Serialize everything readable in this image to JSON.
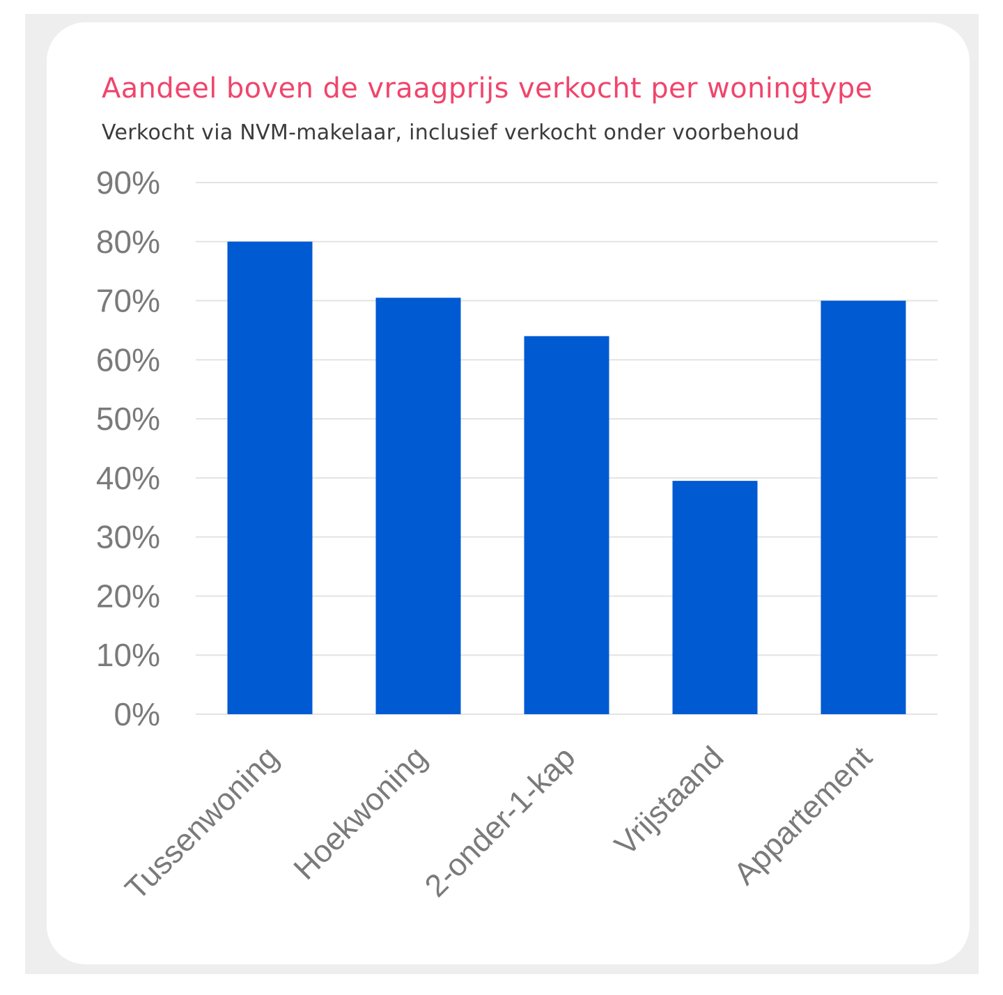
{
  "colors": {
    "title": "#f0456c",
    "bar": "#005ad2",
    "grid": "#e3e3e3",
    "tick_text": "#7a7a7a"
  },
  "chart_data": {
    "type": "bar",
    "title": "Aandeel boven de vraagprijs verkocht per woningtype",
    "subtitle": "Verkocht via NVM-makelaar, inclusief verkocht onder voorbehoud",
    "categories": [
      "Tussenwoning",
      "Hoekwoning",
      "2-onder-1-kap",
      "Vrijstaand",
      "Appartement"
    ],
    "values": [
      80,
      70.5,
      64,
      39.5,
      70
    ],
    "ylim": [
      0,
      90
    ],
    "yticks": [
      0,
      10,
      20,
      30,
      40,
      50,
      60,
      70,
      80,
      90
    ],
    "ytick_labels": [
      "0%",
      "10%",
      "20%",
      "30%",
      "40%",
      "50%",
      "60%",
      "70%",
      "80%",
      "90%"
    ],
    "grid": true,
    "legend": "none"
  }
}
